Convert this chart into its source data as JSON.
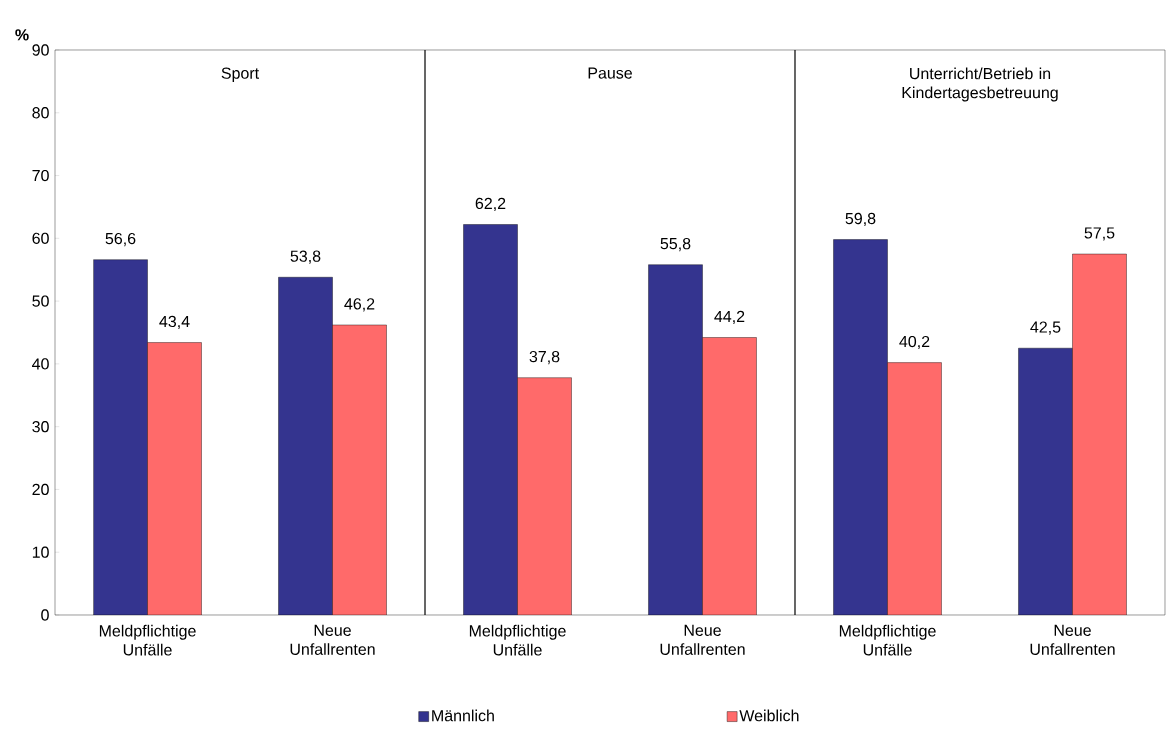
{
  "chart_data": {
    "type": "bar",
    "ylabel": "%",
    "categories": [
      "Meldpflichtige Unfälle",
      "Neue Unfallrenten",
      "Meldpflichtige Unfälle",
      "Neue Unfallrenten",
      "Meldpflichtige Unfälle",
      "Neue Unfallrenten"
    ],
    "series": [
      {
        "name": "Männlich",
        "color": "#34348f",
        "values": [
          56.6,
          53.8,
          62.2,
          55.8,
          59.8,
          42.5
        ],
        "value_labels": [
          "56,6",
          "53,8",
          "62,2",
          "55,8",
          "59,8",
          "42,5"
        ]
      },
      {
        "name": "Weiblich",
        "color": "#ff6a6a",
        "values": [
          43.4,
          46.2,
          37.8,
          44.2,
          40.2,
          57.5
        ],
        "value_labels": [
          "43,4",
          "46,2",
          "37,8",
          "44,2",
          "40,2",
          "57,5"
        ]
      }
    ],
    "annotations": [
      "Sport",
      "Pause",
      "Unterricht/Betrieb in Kindertagesbetreuung"
    ],
    "ylim": [
      0,
      90
    ],
    "yticks": [
      0,
      10,
      20,
      30,
      40,
      50,
      60,
      70,
      80,
      90
    ],
    "grid": false,
    "legend": "bottom"
  }
}
